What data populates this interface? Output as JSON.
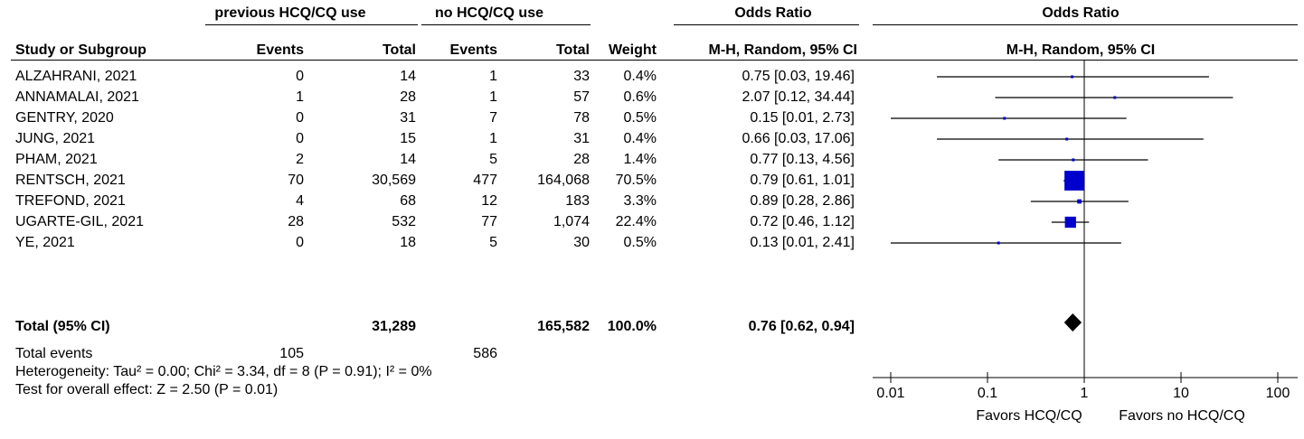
{
  "header": {
    "group1": "previous HCQ/CQ use",
    "group2": "no HCQ/CQ use",
    "or_title": "Odds Ratio",
    "or_method": "M-H, Random, 95% CI",
    "plot_title": "Odds Ratio",
    "plot_method": "M-H, Random, 95% CI",
    "study_col": "Study or Subgroup",
    "events": "Events",
    "total": "Total",
    "weight": "Weight"
  },
  "studies": [
    {
      "name": "ALZAHRANI, 2021",
      "e1": "0",
      "t1": "14",
      "e2": "1",
      "t2": "33",
      "weight": "0.4%",
      "ci": "0.75 [0.03, 19.46]"
    },
    {
      "name": "ANNAMALAI, 2021",
      "e1": "1",
      "t1": "28",
      "e2": "1",
      "t2": "57",
      "weight": "0.6%",
      "ci": "2.07 [0.12, 34.44]"
    },
    {
      "name": "GENTRY, 2020",
      "e1": "0",
      "t1": "31",
      "e2": "7",
      "t2": "78",
      "weight": "0.5%",
      "ci": "0.15 [0.01, 2.73]"
    },
    {
      "name": "JUNG, 2021",
      "e1": "0",
      "t1": "15",
      "e2": "1",
      "t2": "31",
      "weight": "0.4%",
      "ci": "0.66 [0.03, 17.06]"
    },
    {
      "name": "PHAM, 2021",
      "e1": "2",
      "t1": "14",
      "e2": "5",
      "t2": "28",
      "weight": "1.4%",
      "ci": "0.77 [0.13, 4.56]"
    },
    {
      "name": "RENTSCH, 2021",
      "e1": "70",
      "t1": "30,569",
      "e2": "477",
      "t2": "164,068",
      "weight": "70.5%",
      "ci": "0.79 [0.61, 1.01]"
    },
    {
      "name": "TREFOND, 2021",
      "e1": "4",
      "t1": "68",
      "e2": "12",
      "t2": "183",
      "weight": "3.3%",
      "ci": "0.89 [0.28, 2.86]"
    },
    {
      "name": "UGARTE-GIL, 2021",
      "e1": "28",
      "t1": "532",
      "e2": "77",
      "t2": "1,074",
      "weight": "22.4%",
      "ci": "0.72 [0.46, 1.12]"
    },
    {
      "name": "YE, 2021",
      "e1": "0",
      "t1": "18",
      "e2": "5",
      "t2": "30",
      "weight": "0.5%",
      "ci": "0.13 [0.01, 2.41]"
    }
  ],
  "total": {
    "label": "Total (95% CI)",
    "t1": "31,289",
    "t2": "165,582",
    "weight": "100.0%",
    "ci": "0.76 [0.62, 0.94]"
  },
  "total_events": {
    "label": "Total events",
    "e1": "105",
    "e2": "586"
  },
  "heterogeneity": "Heterogeneity: Tau² = 0.00; Chi² = 3.34, df = 8 (P = 0.91); I² = 0%",
  "overall_effect": "Test for overall effect: Z = 2.50 (P = 0.01)",
  "axis": {
    "favors_left": "Favors HCQ/CQ",
    "favors_right": "Favors no HCQ/CQ"
  },
  "colors": {
    "marker": "#0000cc",
    "diamond": "#000000",
    "line": "#000000"
  },
  "chart_data": {
    "type": "forest",
    "scale": "log",
    "xlim": [
      0.01,
      100
    ],
    "ticks": [
      0.01,
      0.1,
      1,
      10,
      100
    ],
    "tick_labels": [
      "0.01",
      "0.1",
      "1",
      "10",
      "100"
    ],
    "reference_line": 1,
    "series": [
      {
        "name": "ALZAHRANI, 2021",
        "or": 0.75,
        "lo": 0.03,
        "hi": 19.46,
        "weight": 0.4
      },
      {
        "name": "ANNAMALAI, 2021",
        "or": 2.07,
        "lo": 0.12,
        "hi": 34.44,
        "weight": 0.6
      },
      {
        "name": "GENTRY, 2020",
        "or": 0.15,
        "lo": 0.01,
        "hi": 2.73,
        "weight": 0.5
      },
      {
        "name": "JUNG, 2021",
        "or": 0.66,
        "lo": 0.03,
        "hi": 17.06,
        "weight": 0.4
      },
      {
        "name": "PHAM, 2021",
        "or": 0.77,
        "lo": 0.13,
        "hi": 4.56,
        "weight": 1.4
      },
      {
        "name": "RENTSCH, 2021",
        "or": 0.79,
        "lo": 0.61,
        "hi": 1.01,
        "weight": 70.5
      },
      {
        "name": "TREFOND, 2021",
        "or": 0.89,
        "lo": 0.28,
        "hi": 2.86,
        "weight": 3.3
      },
      {
        "name": "UGARTE-GIL, 2021",
        "or": 0.72,
        "lo": 0.46,
        "hi": 1.12,
        "weight": 22.4
      },
      {
        "name": "YE, 2021",
        "or": 0.13,
        "lo": 0.01,
        "hi": 2.41,
        "weight": 0.5
      }
    ],
    "pooled": {
      "or": 0.76,
      "lo": 0.62,
      "hi": 0.94
    }
  }
}
